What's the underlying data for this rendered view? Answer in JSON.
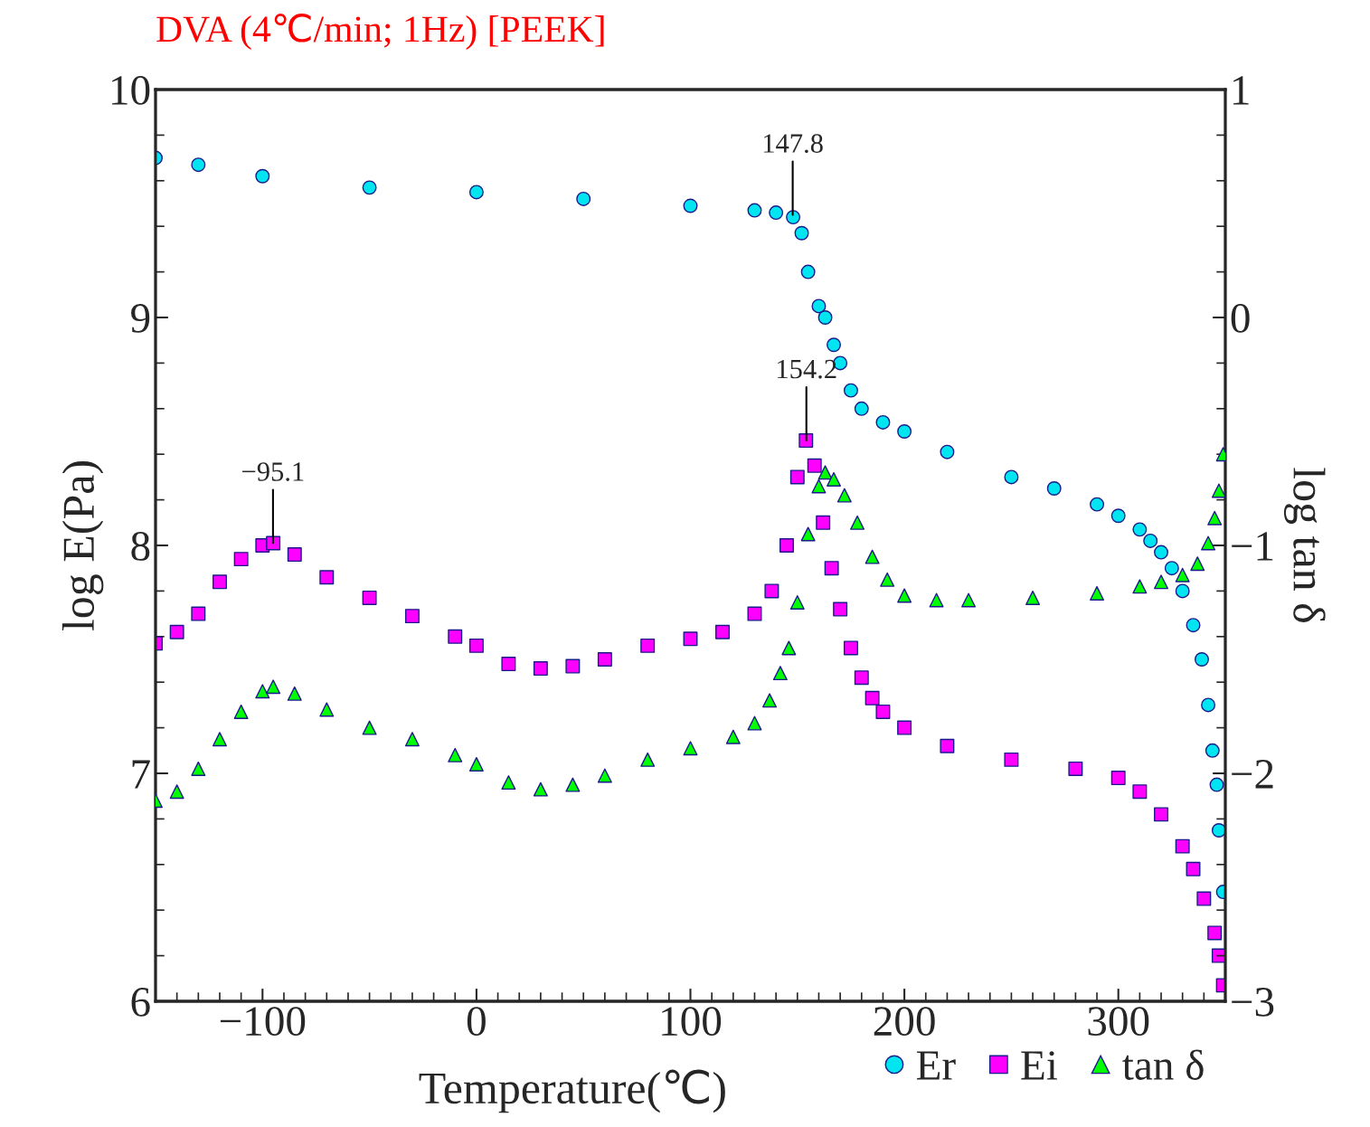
{
  "chart_data": {
    "type": "scatter",
    "title": "DVA (4℃/min; 1Hz) [PEEK]",
    "xlabel": "Temperature(℃)",
    "ylabel": "log E(Pa)",
    "y2label": "log tan δ",
    "xlim": [
      -150,
      350
    ],
    "xticks": [
      -100,
      0,
      100,
      200,
      300
    ],
    "ylim": [
      6,
      10
    ],
    "yticks": [
      6,
      7,
      8,
      9,
      10
    ],
    "y2lim": [
      -3,
      1
    ],
    "y2ticks": [
      -3,
      -2,
      -1,
      0,
      1
    ],
    "grid": false,
    "legend": "bottom right",
    "annotations": [
      {
        "text": "−95.1",
        "x": -95.1,
        "y": 8.01
      },
      {
        "text": "147.8",
        "x": 147.8,
        "y": 9.45
      },
      {
        "text": "154.2",
        "x": 154.2,
        "y": 8.46
      }
    ],
    "series": [
      {
        "name": "Er",
        "color": "#00e5f0",
        "marker": "circle",
        "x": [
          -150,
          -130,
          -100,
          -50,
          0,
          50,
          100,
          130,
          140,
          148,
          152,
          155,
          160,
          163,
          167,
          170,
          175,
          180,
          190,
          200,
          220,
          250,
          270,
          290,
          300,
          310,
          315,
          320,
          325,
          330,
          335,
          339,
          342,
          344,
          346,
          347,
          349
        ],
        "values": [
          9.7,
          9.67,
          9.62,
          9.57,
          9.55,
          9.52,
          9.49,
          9.47,
          9.46,
          9.44,
          9.37,
          9.2,
          9.05,
          9.0,
          8.88,
          8.8,
          8.68,
          8.6,
          8.54,
          8.5,
          8.41,
          8.3,
          8.25,
          8.18,
          8.13,
          8.07,
          8.02,
          7.97,
          7.9,
          7.8,
          7.65,
          7.5,
          7.3,
          7.1,
          6.95,
          6.75,
          6.48
        ]
      },
      {
        "name": "Ei",
        "color": "#ff00ff",
        "marker": "square",
        "x": [
          -150,
          -140,
          -130,
          -120,
          -110,
          -100,
          -95,
          -85,
          -70,
          -50,
          -30,
          -10,
          0,
          15,
          30,
          45,
          60,
          80,
          100,
          115,
          130,
          138,
          145,
          150,
          154,
          158,
          162,
          166,
          170,
          175,
          180,
          185,
          190,
          200,
          220,
          250,
          280,
          300,
          310,
          320,
          330,
          335,
          340,
          345,
          347,
          349
        ],
        "values": [
          7.57,
          7.62,
          7.7,
          7.84,
          7.94,
          8.0,
          8.01,
          7.96,
          7.86,
          7.77,
          7.69,
          7.6,
          7.56,
          7.48,
          7.46,
          7.47,
          7.5,
          7.56,
          7.59,
          7.62,
          7.7,
          7.8,
          8.0,
          8.3,
          8.46,
          8.35,
          8.1,
          7.9,
          7.72,
          7.55,
          7.42,
          7.33,
          7.27,
          7.2,
          7.12,
          7.06,
          7.02,
          6.98,
          6.92,
          6.82,
          6.68,
          6.58,
          6.45,
          6.3,
          6.2,
          6.07
        ]
      },
      {
        "name": "tan δ",
        "color": "#00ff00",
        "marker": "triangle",
        "axis": "y2",
        "x": [
          -150,
          -140,
          -130,
          -120,
          -110,
          -100,
          -95,
          -85,
          -70,
          -50,
          -30,
          -10,
          0,
          15,
          30,
          45,
          60,
          80,
          100,
          120,
          130,
          137,
          142,
          146,
          150,
          155,
          160,
          163,
          167,
          172,
          178,
          185,
          192,
          200,
          215,
          230,
          260,
          290,
          310,
          320,
          330,
          337,
          342,
          345,
          347,
          349
        ],
        "values": [
          -2.12,
          -2.08,
          -1.98,
          -1.85,
          -1.73,
          -1.64,
          -1.62,
          -1.65,
          -1.72,
          -1.8,
          -1.85,
          -1.92,
          -1.96,
          -2.04,
          -2.07,
          -2.05,
          -2.01,
          -1.94,
          -1.89,
          -1.84,
          -1.78,
          -1.68,
          -1.56,
          -1.45,
          -1.25,
          -0.95,
          -0.74,
          -0.68,
          -0.71,
          -0.78,
          -0.9,
          -1.05,
          -1.15,
          -1.22,
          -1.24,
          -1.24,
          -1.23,
          -1.21,
          -1.18,
          -1.16,
          -1.13,
          -1.08,
          -0.99,
          -0.88,
          -0.76,
          -0.6
        ]
      }
    ]
  }
}
